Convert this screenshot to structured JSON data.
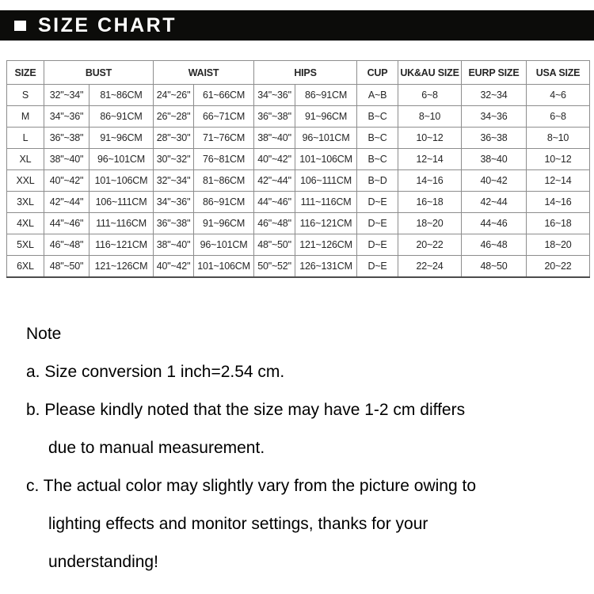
{
  "header": {
    "title": "SIZE CHART",
    "square_icon": "white-square-bullet-icon"
  },
  "colors": {
    "title_bar_background": "#0c0c0a",
    "title_text": "#ffffff",
    "table_border": "#8d8d8d",
    "table_text": "#262626",
    "note_text": "#000000",
    "page_background": "#ffffff"
  },
  "table": {
    "header_groups": [
      {
        "label": "SIZE",
        "span": 1
      },
      {
        "label": "BUST",
        "span": 2
      },
      {
        "label": "WAIST",
        "span": 2
      },
      {
        "label": "HIPS",
        "span": 2
      },
      {
        "label": "CUP",
        "span": 1
      },
      {
        "label": "UK&AU SIZE",
        "span": 1
      },
      {
        "label": "EURP SIZE",
        "span": 1
      },
      {
        "label": "USA SIZE",
        "span": 1
      }
    ],
    "rows": [
      [
        "S",
        "32\"~34\"",
        "81~86CM",
        "24\"~26\"",
        "61~66CM",
        "34\"~36\"",
        "86~91CM",
        "A~B",
        "6~8",
        "32~34",
        "4~6"
      ],
      [
        "M",
        "34\"~36\"",
        "86~91CM",
        "26\"~28\"",
        "66~71CM",
        "36\"~38\"",
        "91~96CM",
        "B~C",
        "8~10",
        "34~36",
        "6~8"
      ],
      [
        "L",
        "36\"~38\"",
        "91~96CM",
        "28\"~30\"",
        "71~76CM",
        "38\"~40\"",
        "96~101CM",
        "B~C",
        "10~12",
        "36~38",
        "8~10"
      ],
      [
        "XL",
        "38\"~40\"",
        "96~101CM",
        "30\"~32\"",
        "76~81CM",
        "40\"~42\"",
        "101~106CM",
        "B~C",
        "12~14",
        "38~40",
        "10~12"
      ],
      [
        "XXL",
        "40\"~42\"",
        "101~106CM",
        "32\"~34\"",
        "81~86CM",
        "42\"~44\"",
        "106~111CM",
        "B~D",
        "14~16",
        "40~42",
        "12~14"
      ],
      [
        "3XL",
        "42\"~44\"",
        "106~111CM",
        "34\"~36\"",
        "86~91CM",
        "44\"~46\"",
        "111~116CM",
        "D~E",
        "16~18",
        "42~44",
        "14~16"
      ],
      [
        "4XL",
        "44\"~46\"",
        "111~116CM",
        "36\"~38\"",
        "91~96CM",
        "46\"~48\"",
        "116~121CM",
        "D~E",
        "18~20",
        "44~46",
        "16~18"
      ],
      [
        "5XL",
        "46\"~48\"",
        "116~121CM",
        "38\"~40\"",
        "96~101CM",
        "48\"~50\"",
        "121~126CM",
        "D~E",
        "20~22",
        "46~48",
        "18~20"
      ],
      [
        "6XL",
        "48\"~50\"",
        "121~126CM",
        "40\"~42\"",
        "101~106CM",
        "50\"~52\"",
        "126~131CM",
        "D~E",
        "22~24",
        "48~50",
        "20~22"
      ]
    ]
  },
  "note": {
    "title": "Note",
    "lines": [
      {
        "text": "a. Size conversion 1 inch=2.54 cm.",
        "indent": false
      },
      {
        "text": "b. Please kindly noted that the size may have 1-2 cm differs",
        "indent": false
      },
      {
        "text": "due to manual measurement.",
        "indent": true
      },
      {
        "text": "c. The actual color may slightly vary from the picture owing to",
        "indent": false
      },
      {
        "text": "lighting effects and monitor settings, thanks for your",
        "indent": true
      },
      {
        "text": "understanding!",
        "indent": true
      }
    ]
  }
}
